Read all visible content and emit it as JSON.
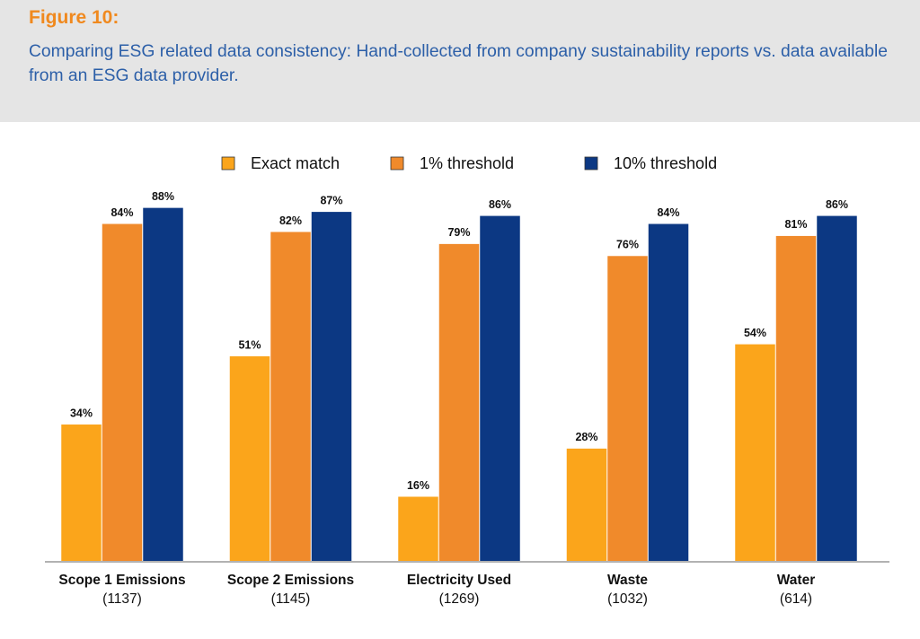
{
  "chart_data": {
    "type": "bar",
    "title": "Figure 10:",
    "subtitle": "Comparing ESG related data consistency: Hand-collected from company sustainability reports vs. data available from an ESG data provider.",
    "categories": [
      "Scope 1 Emissions",
      "Scope 2 Emissions",
      "Electricity Used",
      "Waste",
      "Water"
    ],
    "sample_sizes": [
      "(1137)",
      "(1145)",
      "(1269)",
      "(1032)",
      "(614)"
    ],
    "series": [
      {
        "name": "Exact match",
        "color": "#fba51b",
        "values": [
          34,
          51,
          16,
          28,
          54
        ],
        "value_labels": [
          "34%",
          "51%",
          "16%",
          "28%",
          "54%"
        ]
      },
      {
        "name": "1% threshold",
        "color": "#f08a2b",
        "values": [
          84,
          82,
          79,
          76,
          81
        ],
        "value_labels": [
          "84%",
          "82%",
          "79%",
          "76%",
          "81%"
        ]
      },
      {
        "name": "10% threshold",
        "color": "#0c3883",
        "values": [
          88,
          87,
          86,
          84,
          86
        ],
        "value_labels": [
          "88%",
          "87%",
          "86%",
          "84%",
          "86%"
        ]
      }
    ],
    "legend": "top"
  }
}
